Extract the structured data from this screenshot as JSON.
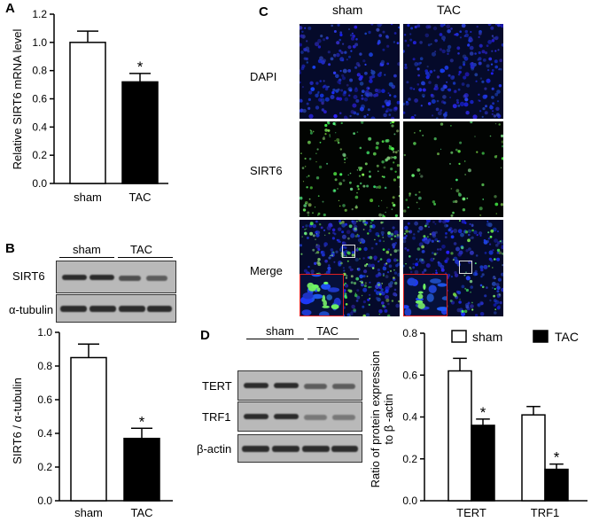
{
  "panels": {
    "a": "A",
    "b": "B",
    "c": "C",
    "d": "D"
  },
  "panelA": {
    "ylabel": "Relative SIRT6 mRNA level",
    "yticks": [
      "0.0",
      "0.2",
      "0.4",
      "0.6",
      "0.8",
      "1.0",
      "1.2"
    ],
    "star": "*"
  },
  "panelB": {
    "blot_sham": "sham",
    "blot_tac": "TAC",
    "row_sirt6": "SIRT6",
    "row_tubulin": "α-tubulin",
    "ylabel": "SIRT6 / α-tubulin",
    "yticks": [
      "0.0",
      "0.2",
      "0.4",
      "0.6",
      "0.8",
      "1.0"
    ],
    "star": "*"
  },
  "panelC": {
    "col_sham": "sham",
    "col_tac": "TAC",
    "row_dapi": "DAPI",
    "row_sirt6": "SIRT6",
    "row_merge": "Merge"
  },
  "panelD": {
    "blot_sham": "sham",
    "blot_tac": "TAC",
    "row_tert": "TERT",
    "row_trf1": "TRF1",
    "row_actin": "β-actin",
    "ylabel_1": "Ratio of protein expression",
    "ylabel_2": "to β -actin",
    "yticks": [
      "0.0",
      "0.2",
      "0.4",
      "0.6",
      "0.8"
    ],
    "legend_sham": "sham",
    "legend_tac": "TAC",
    "star": "*"
  },
  "chart_data": [
    {
      "type": "bar",
      "panel": "A",
      "categories": [
        "sham",
        "TAC"
      ],
      "values": [
        1.0,
        0.72
      ],
      "errors": [
        0.08,
        0.06
      ],
      "ylabel": "Relative SIRT6 mRNA level",
      "ylim": [
        0,
        1.2
      ],
      "fill": [
        "#ffffff",
        "#000000"
      ],
      "significance": [
        null,
        "*"
      ]
    },
    {
      "type": "bar",
      "panel": "B",
      "categories": [
        "sham",
        "TAC"
      ],
      "values": [
        0.85,
        0.37
      ],
      "errors": [
        0.08,
        0.06
      ],
      "ylabel": "SIRT6 / α-tubulin",
      "ylim": [
        0,
        1.0
      ],
      "fill": [
        "#ffffff",
        "#000000"
      ],
      "significance": [
        null,
        "*"
      ]
    },
    {
      "type": "bar",
      "panel": "D",
      "categories": [
        "TERT",
        "TRF1"
      ],
      "series": [
        {
          "name": "sham",
          "values": [
            0.62,
            0.41
          ],
          "errors": [
            0.06,
            0.04
          ],
          "fill": "#ffffff"
        },
        {
          "name": "TAC",
          "values": [
            0.36,
            0.15
          ],
          "errors": [
            0.03,
            0.025
          ],
          "fill": "#000000"
        }
      ],
      "ylabel": "Ratio of protein expression to β -actin",
      "ylim": [
        0,
        0.8
      ],
      "legend": "top",
      "significance": {
        "TAC": [
          "*",
          "*"
        ]
      }
    }
  ]
}
